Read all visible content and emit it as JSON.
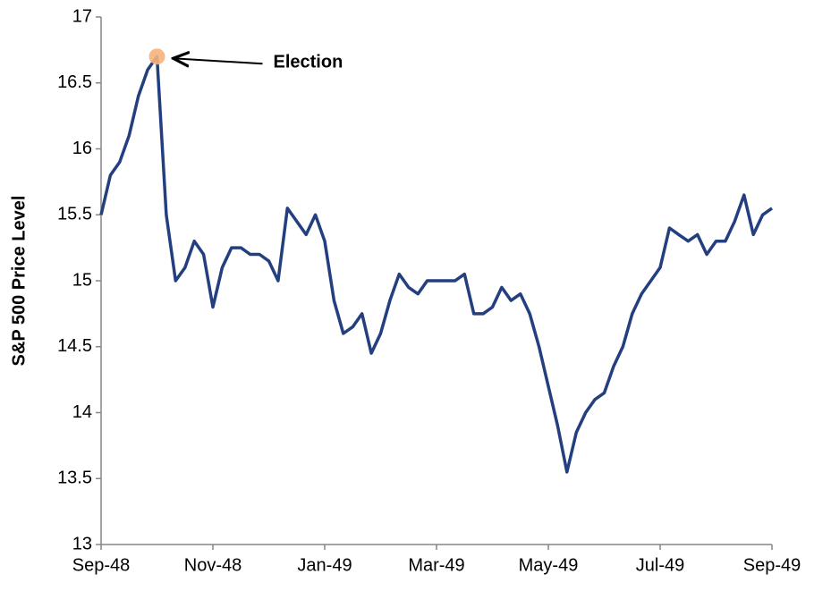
{
  "chart_data": {
    "type": "line",
    "y_label": "S&P 500 Price Level",
    "categories": [
      "Sep-48",
      null,
      null,
      null,
      null,
      null,
      null,
      null,
      null,
      null,
      null,
      null,
      "Nov-48",
      null,
      null,
      null,
      null,
      null,
      null,
      null,
      null,
      null,
      null,
      null,
      "Jan-49",
      null,
      null,
      null,
      null,
      null,
      null,
      null,
      null,
      null,
      null,
      null,
      "Mar-49",
      null,
      null,
      null,
      null,
      null,
      null,
      null,
      null,
      null,
      null,
      null,
      "May-49",
      null,
      null,
      null,
      null,
      null,
      null,
      null,
      null,
      null,
      null,
      null,
      "Jul-49",
      null,
      null,
      null,
      null,
      null,
      null,
      null,
      null,
      null,
      null,
      null,
      "Sep-49"
    ],
    "series": [
      {
        "name": "S&P 500",
        "color": "#243f7f",
        "values": [
          15.5,
          15.8,
          15.9,
          16.1,
          16.4,
          16.6,
          16.7,
          15.5,
          15.0,
          15.1,
          15.3,
          15.2,
          14.8,
          15.1,
          15.25,
          15.25,
          15.2,
          15.2,
          15.15,
          15.0,
          15.55,
          15.45,
          15.35,
          15.5,
          15.3,
          14.85,
          14.6,
          14.65,
          14.75,
          14.45,
          14.6,
          14.85,
          15.05,
          14.95,
          14.9,
          15.0,
          15.0,
          15.0,
          15.0,
          15.05,
          14.75,
          14.75,
          14.8,
          14.95,
          14.85,
          14.9,
          14.75,
          14.5,
          14.2,
          13.9,
          13.55,
          13.85,
          14.0,
          14.1,
          14.15,
          14.35,
          14.5,
          14.75,
          14.9,
          15.0,
          15.1,
          15.4,
          15.35,
          15.3,
          15.35,
          15.2,
          15.3,
          15.3,
          15.45,
          15.65,
          15.35,
          15.5,
          15.55
        ]
      }
    ],
    "ylim": [
      13,
      17
    ],
    "yticks": [
      13,
      13.5,
      14,
      14.5,
      15,
      15.5,
      16,
      16.5,
      17
    ],
    "annotations": [
      {
        "text": "Election",
        "category_index": 6
      }
    ],
    "grid": false
  }
}
